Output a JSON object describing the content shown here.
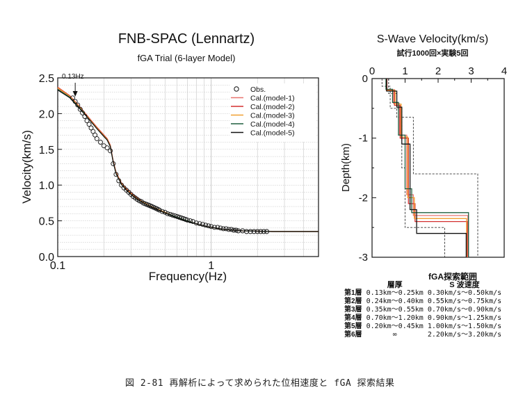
{
  "chart_data": [
    {
      "type": "line",
      "title": "FNB-SPAC (Lennartz)",
      "subtitle": "fGA Trial (6-layer Model)",
      "xlabel": "Frequency(Hz)",
      "ylabel": "Velocity(km/s)",
      "xscale": "log",
      "xlim": [
        0.1,
        5
      ],
      "ylim": [
        0.0,
        2.5
      ],
      "x_ticks": [
        {
          "value": 0.1,
          "label": "0.1"
        },
        {
          "value": 1,
          "label": "1"
        }
      ],
      "y_ticks": [
        {
          "value": 0.0,
          "label": "0.0"
        },
        {
          "value": 0.5,
          "label": "0.5"
        },
        {
          "value": 1.0,
          "label": "1.0"
        },
        {
          "value": 1.5,
          "label": "1.5"
        },
        {
          "value": 2.0,
          "label": "2.0"
        },
        {
          "value": 2.5,
          "label": "2.5"
        }
      ],
      "grid": true,
      "legend_position": "top-right",
      "annotation": {
        "label": "0.13Hz",
        "x": 0.13
      },
      "observed": {
        "name": "Obs.",
        "x": [
          0.125,
          0.13,
          0.135,
          0.14,
          0.145,
          0.15,
          0.155,
          0.16,
          0.165,
          0.17,
          0.175,
          0.18,
          0.19,
          0.2,
          0.21,
          0.22,
          0.23,
          0.24,
          0.25,
          0.26,
          0.27,
          0.28,
          0.29,
          0.3,
          0.31,
          0.32,
          0.33,
          0.34,
          0.35,
          0.36,
          0.37,
          0.38,
          0.39,
          0.4,
          0.41,
          0.42,
          0.43,
          0.44,
          0.45,
          0.46,
          0.48,
          0.5,
          0.52,
          0.54,
          0.56,
          0.58,
          0.6,
          0.62,
          0.64,
          0.66,
          0.68,
          0.7,
          0.73,
          0.76,
          0.8,
          0.84,
          0.88,
          0.92,
          0.96,
          1.0,
          1.05,
          1.1,
          1.15,
          1.2,
          1.25,
          1.3,
          1.35,
          1.4,
          1.45,
          1.5,
          1.6,
          1.7,
          1.8,
          1.9,
          2.0,
          2.1,
          2.2,
          2.3
        ],
        "y": [
          2.22,
          2.17,
          2.12,
          2.06,
          2.01,
          1.96,
          1.9,
          1.85,
          1.8,
          1.75,
          1.7,
          1.65,
          1.6,
          1.55,
          1.52,
          1.48,
          1.3,
          1.15,
          1.06,
          1.0,
          0.96,
          0.93,
          0.9,
          0.87,
          0.84,
          0.82,
          0.8,
          0.78,
          0.77,
          0.75,
          0.74,
          0.73,
          0.72,
          0.71,
          0.7,
          0.69,
          0.68,
          0.67,
          0.66,
          0.65,
          0.63,
          0.62,
          0.6,
          0.59,
          0.58,
          0.57,
          0.56,
          0.55,
          0.54,
          0.53,
          0.52,
          0.51,
          0.5,
          0.49,
          0.47,
          0.46,
          0.45,
          0.44,
          0.43,
          0.42,
          0.41,
          0.41,
          0.4,
          0.39,
          0.39,
          0.38,
          0.38,
          0.37,
          0.37,
          0.36,
          0.36,
          0.35,
          0.35,
          0.35,
          0.35,
          0.35,
          0.35,
          0.35
        ]
      },
      "series": [
        {
          "name": "Cal.(model-1)",
          "color": "#e8736f",
          "x": [
            0.1,
            0.12,
            0.14,
            0.16,
            0.18,
            0.2,
            0.21,
            0.22,
            0.23,
            0.24,
            0.26,
            0.28,
            0.3,
            0.33,
            0.36,
            0.4,
            0.45,
            0.5,
            0.55,
            0.6,
            0.7,
            0.8,
            0.9,
            1.0,
            1.2,
            1.4,
            1.6,
            2.0,
            2.5,
            3.0,
            4.0,
            5.0
          ],
          "y": [
            2.35,
            2.24,
            2.08,
            1.93,
            1.8,
            1.69,
            1.64,
            1.55,
            1.33,
            1.17,
            1.02,
            0.94,
            0.88,
            0.81,
            0.76,
            0.71,
            0.66,
            0.62,
            0.58,
            0.55,
            0.5,
            0.46,
            0.43,
            0.41,
            0.38,
            0.37,
            0.36,
            0.355,
            0.35,
            0.35,
            0.35,
            0.35
          ]
        },
        {
          "name": "Cal.(model-2)",
          "color": "#d32f2f",
          "x": [
            0.1,
            0.12,
            0.14,
            0.16,
            0.18,
            0.2,
            0.21,
            0.22,
            0.23,
            0.24,
            0.26,
            0.28,
            0.3,
            0.33,
            0.36,
            0.4,
            0.45,
            0.5,
            0.55,
            0.6,
            0.7,
            0.8,
            0.9,
            1.0,
            1.2,
            1.4,
            1.6,
            2.0,
            2.5,
            3.0,
            4.0,
            5.0
          ],
          "y": [
            2.37,
            2.25,
            2.09,
            1.94,
            1.81,
            1.7,
            1.65,
            1.56,
            1.34,
            1.18,
            1.03,
            0.95,
            0.89,
            0.82,
            0.76,
            0.71,
            0.66,
            0.62,
            0.58,
            0.55,
            0.5,
            0.46,
            0.43,
            0.41,
            0.38,
            0.37,
            0.36,
            0.355,
            0.35,
            0.35,
            0.35,
            0.35
          ]
        },
        {
          "name": "Cal.(model-3)",
          "color": "#f0a030",
          "x": [
            0.1,
            0.12,
            0.14,
            0.16,
            0.18,
            0.2,
            0.21,
            0.22,
            0.23,
            0.24,
            0.26,
            0.28,
            0.3,
            0.33,
            0.36,
            0.4,
            0.45,
            0.5,
            0.55,
            0.6,
            0.7,
            0.8,
            0.9,
            1.0,
            1.2,
            1.4,
            1.6,
            2.0,
            2.5,
            3.0,
            4.0,
            5.0
          ],
          "y": [
            2.36,
            2.24,
            2.08,
            1.93,
            1.8,
            1.69,
            1.64,
            1.55,
            1.33,
            1.17,
            1.02,
            0.94,
            0.88,
            0.81,
            0.76,
            0.71,
            0.66,
            0.62,
            0.58,
            0.55,
            0.5,
            0.46,
            0.43,
            0.41,
            0.38,
            0.37,
            0.36,
            0.355,
            0.35,
            0.35,
            0.35,
            0.35
          ]
        },
        {
          "name": "Cal.(model-4)",
          "color": "#1f5f3f",
          "x": [
            0.1,
            0.12,
            0.14,
            0.16,
            0.18,
            0.2,
            0.21,
            0.22,
            0.23,
            0.24,
            0.26,
            0.28,
            0.3,
            0.33,
            0.36,
            0.4,
            0.45,
            0.5,
            0.55,
            0.6,
            0.7,
            0.8,
            0.9,
            1.0,
            1.2,
            1.4,
            1.6,
            2.0,
            2.5,
            3.0,
            4.0,
            5.0
          ],
          "y": [
            2.34,
            2.23,
            2.07,
            1.92,
            1.79,
            1.68,
            1.63,
            1.54,
            1.32,
            1.16,
            1.01,
            0.93,
            0.87,
            0.8,
            0.75,
            0.7,
            0.65,
            0.61,
            0.58,
            0.55,
            0.5,
            0.46,
            0.43,
            0.41,
            0.38,
            0.37,
            0.36,
            0.355,
            0.35,
            0.35,
            0.35,
            0.35
          ]
        },
        {
          "name": "Cal.(model-5)",
          "color": "#111111",
          "x": [
            0.1,
            0.12,
            0.14,
            0.16,
            0.18,
            0.2,
            0.21,
            0.22,
            0.23,
            0.24,
            0.26,
            0.28,
            0.3,
            0.33,
            0.36,
            0.4,
            0.45,
            0.5,
            0.55,
            0.6,
            0.7,
            0.8,
            0.9,
            1.0,
            1.2,
            1.4,
            1.6,
            2.0,
            2.5,
            3.0,
            4.0,
            5.0
          ],
          "y": [
            2.33,
            2.22,
            2.06,
            1.92,
            1.79,
            1.68,
            1.63,
            1.54,
            1.32,
            1.16,
            1.01,
            0.93,
            0.87,
            0.8,
            0.75,
            0.7,
            0.65,
            0.61,
            0.57,
            0.54,
            0.49,
            0.46,
            0.43,
            0.41,
            0.38,
            0.37,
            0.36,
            0.355,
            0.35,
            0.35,
            0.35,
            0.35
          ]
        }
      ]
    },
    {
      "type": "line",
      "title": "S-Wave Velocity(km/s)",
      "subtitle": "試行1000回×実験5回",
      "xlabel": "",
      "ylabel": "Depth(km)",
      "xlim": [
        0,
        4
      ],
      "ylim": [
        -3,
        0
      ],
      "x_ticks": [
        "0",
        "1",
        "2",
        "3",
        "4"
      ],
      "y_ticks": [
        "0",
        "-1",
        "-2",
        "-3"
      ],
      "bounds": [
        {
          "style": "dashed",
          "x": [
            0.3,
            0.3,
            0.55,
            0.55,
            0.9,
            0.9,
            1.0,
            1.0,
            2.2,
            2.2
          ],
          "y": [
            0,
            -0.13,
            -0.13,
            -0.5,
            -0.5,
            -1.5,
            -1.5,
            -2.5,
            -2.5,
            -3.0
          ]
        },
        {
          "style": "dashed",
          "x": [
            0.5,
            0.5,
            0.75,
            0.75,
            1.25,
            1.25,
            1.5,
            1.5,
            3.2,
            3.2
          ],
          "y": [
            0,
            -0.25,
            -0.25,
            -0.65,
            -0.65,
            -1.6,
            -1.6,
            -1.6,
            -1.6,
            -3.0
          ]
        }
      ],
      "series": [
        {
          "name": "model-1",
          "color": "#e8736f",
          "x": [
            0.43,
            0.43,
            0.65,
            0.65,
            0.83,
            0.83,
            1.05,
            1.05,
            1.25,
            1.25,
            2.9,
            2.9
          ],
          "y": [
            0,
            -0.2,
            -0.2,
            -0.42,
            -0.42,
            -0.95,
            -0.95,
            -1.95,
            -1.95,
            -2.3,
            -2.3,
            -3.0
          ]
        },
        {
          "name": "model-2",
          "color": "#d32f2f",
          "x": [
            0.45,
            0.45,
            0.68,
            0.68,
            0.85,
            0.85,
            1.1,
            1.1,
            1.3,
            1.3,
            2.88,
            2.88
          ],
          "y": [
            0,
            -0.19,
            -0.19,
            -0.45,
            -0.45,
            -1.0,
            -1.0,
            -2.1,
            -2.1,
            -2.4,
            -2.4,
            -3.0
          ]
        },
        {
          "name": "model-3",
          "color": "#f0a030",
          "x": [
            0.44,
            0.44,
            0.7,
            0.7,
            0.88,
            0.88,
            1.08,
            1.08,
            1.28,
            1.28,
            2.86,
            2.86
          ],
          "y": [
            0,
            -0.2,
            -0.2,
            -0.43,
            -0.43,
            -0.98,
            -0.98,
            -2.0,
            -2.0,
            -2.35,
            -2.35,
            -3.0
          ]
        },
        {
          "name": "model-4",
          "color": "#1f5f3f",
          "x": [
            0.42,
            0.42,
            0.62,
            0.62,
            0.8,
            0.8,
            1.0,
            1.0,
            1.2,
            1.2,
            2.92,
            2.92
          ],
          "y": [
            0,
            -0.18,
            -0.18,
            -0.4,
            -0.4,
            -0.95,
            -0.95,
            -1.85,
            -1.85,
            -2.25,
            -2.25,
            -3.0
          ]
        },
        {
          "name": "model-5",
          "color": "#111111",
          "x": [
            0.44,
            0.44,
            0.75,
            0.75,
            0.9,
            0.9,
            1.15,
            1.15,
            1.35,
            1.35,
            2.85,
            2.85
          ],
          "y": [
            0,
            -0.21,
            -0.21,
            -0.48,
            -0.48,
            -1.1,
            -1.1,
            -2.2,
            -2.2,
            -2.6,
            -2.6,
            -3.0
          ]
        }
      ]
    }
  ],
  "search_range": {
    "title": "fGA探索範囲",
    "col_thickness": "層厚",
    "col_velocity": "S 波速度",
    "rows": [
      {
        "layer": "第1層",
        "thickness": "0.13km〜0.25km",
        "velocity": "0.30km/s〜0.50km/s"
      },
      {
        "layer": "第2層",
        "thickness": "0.24km〜0.40km",
        "velocity": "0.55km/s〜0.75km/s"
      },
      {
        "layer": "第3層",
        "thickness": "0.35km〜0.55km",
        "velocity": "0.70km/s〜0.90km/s"
      },
      {
        "layer": "第4層",
        "thickness": "0.70km〜1.20km",
        "velocity": "0.90km/s〜1.25km/s"
      },
      {
        "layer": "第5層",
        "thickness": "0.20km〜0.45km",
        "velocity": "1.00km/s〜1.50km/s"
      },
      {
        "layer": "第6層",
        "thickness": "∞",
        "velocity": "2.20km/s〜3.20km/s"
      }
    ]
  },
  "caption": "図 2-81  再解析によって求められた位相速度と fGA 探索結果"
}
